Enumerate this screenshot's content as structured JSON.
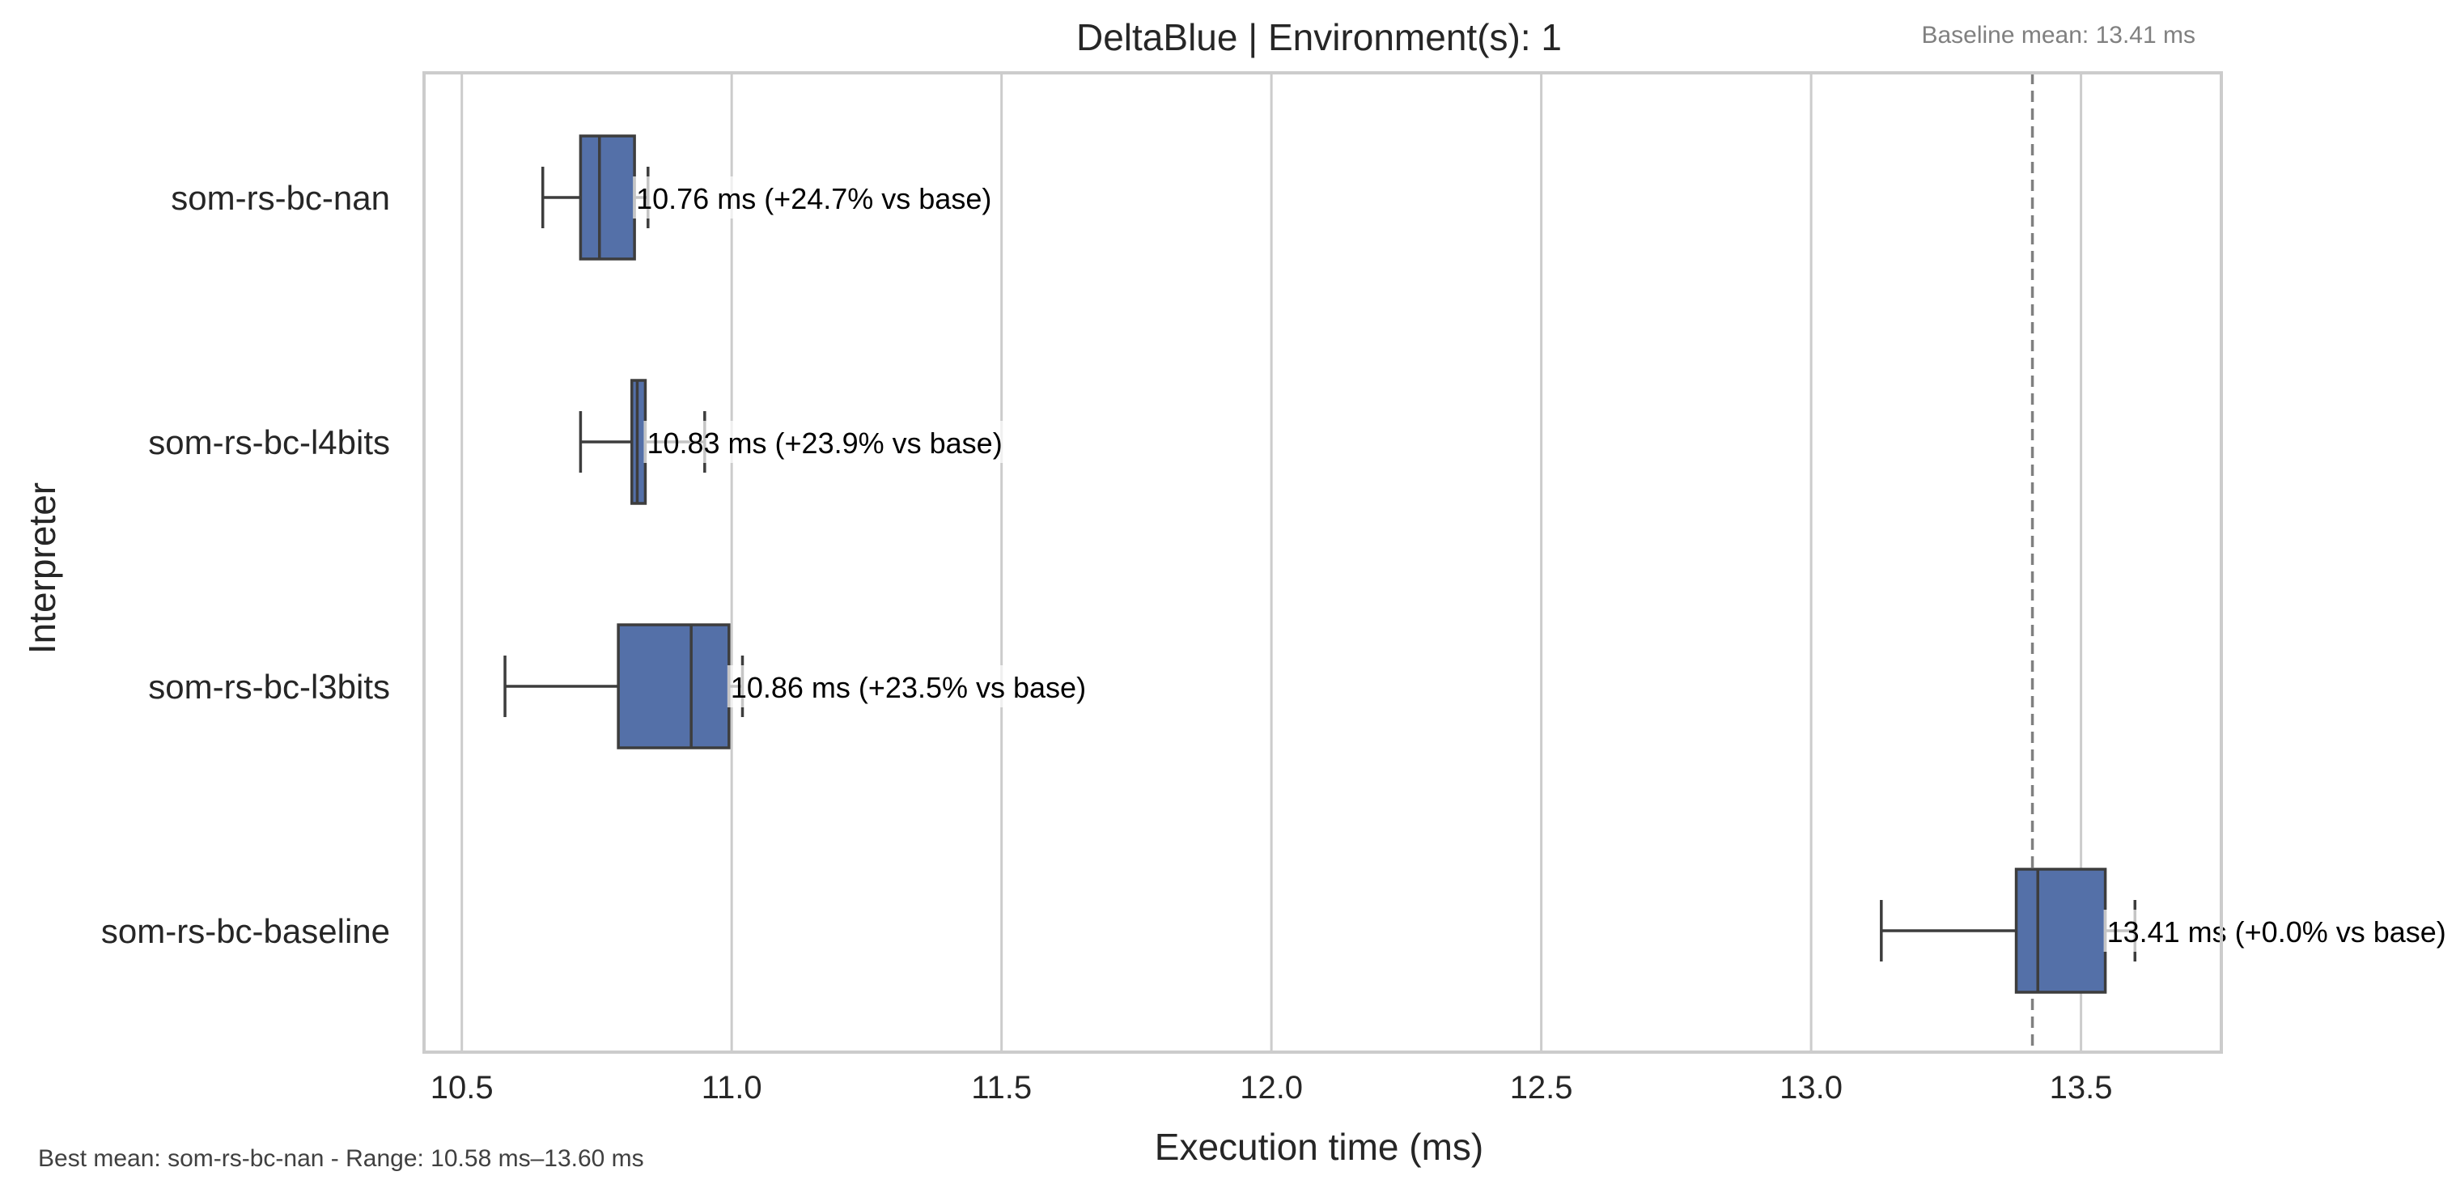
{
  "chart_data": {
    "type": "box",
    "orientation": "horizontal",
    "title": "DeltaBlue | Environment(s): 1",
    "baseline_note": "Baseline mean: 13.41 ms",
    "footer_note": "Best mean: som-rs-bc-nan - Range: 10.58 ms–13.60 ms",
    "xlabel": "Execution time (ms)",
    "ylabel": "Interpreter",
    "xlim": [
      10.43,
      13.76
    ],
    "x_ticks": [
      10.5,
      11.0,
      11.5,
      12.0,
      12.5,
      13.0,
      13.5
    ],
    "x_tick_labels": [
      "10.5",
      "11.0",
      "11.5",
      "12.0",
      "12.5",
      "13.0",
      "13.5"
    ],
    "grid": true,
    "baseline_value": 13.41,
    "categories": [
      "som-rs-bc-nan",
      "som-rs-bc-l4bits",
      "som-rs-bc-l3bits",
      "som-rs-bc-baseline"
    ],
    "boxes": [
      {
        "name": "som-rs-bc-nan",
        "whisker_low": 10.65,
        "q1": 10.72,
        "median": 10.755,
        "q3": 10.82,
        "whisker_high": 10.845,
        "label": "10.76 ms  (+24.7% vs base)"
      },
      {
        "name": "som-rs-bc-l4bits",
        "whisker_low": 10.72,
        "q1": 10.815,
        "median": 10.825,
        "q3": 10.84,
        "whisker_high": 10.95,
        "label": "10.83 ms  (+23.9% vs base)"
      },
      {
        "name": "som-rs-bc-l3bits",
        "whisker_low": 10.58,
        "q1": 10.79,
        "median": 10.925,
        "q3": 10.995,
        "whisker_high": 11.02,
        "label": "10.86 ms  (+23.5% vs base)"
      },
      {
        "name": "som-rs-bc-baseline",
        "whisker_low": 13.13,
        "q1": 13.38,
        "median": 13.42,
        "q3": 13.545,
        "whisker_high": 13.6,
        "label": "13.41 ms  (+0.0% vs base)"
      }
    ],
    "colors": {
      "box_fill": "#5470a8",
      "box_edge": "#3d3d3d",
      "grid": "#cccccc",
      "axes_frame": "#cccccc",
      "baseline_line": "#808080",
      "label_bg": "#ffffff",
      "text": "#262626",
      "note_text": "#808080",
      "footer_text": "#404040"
    }
  }
}
